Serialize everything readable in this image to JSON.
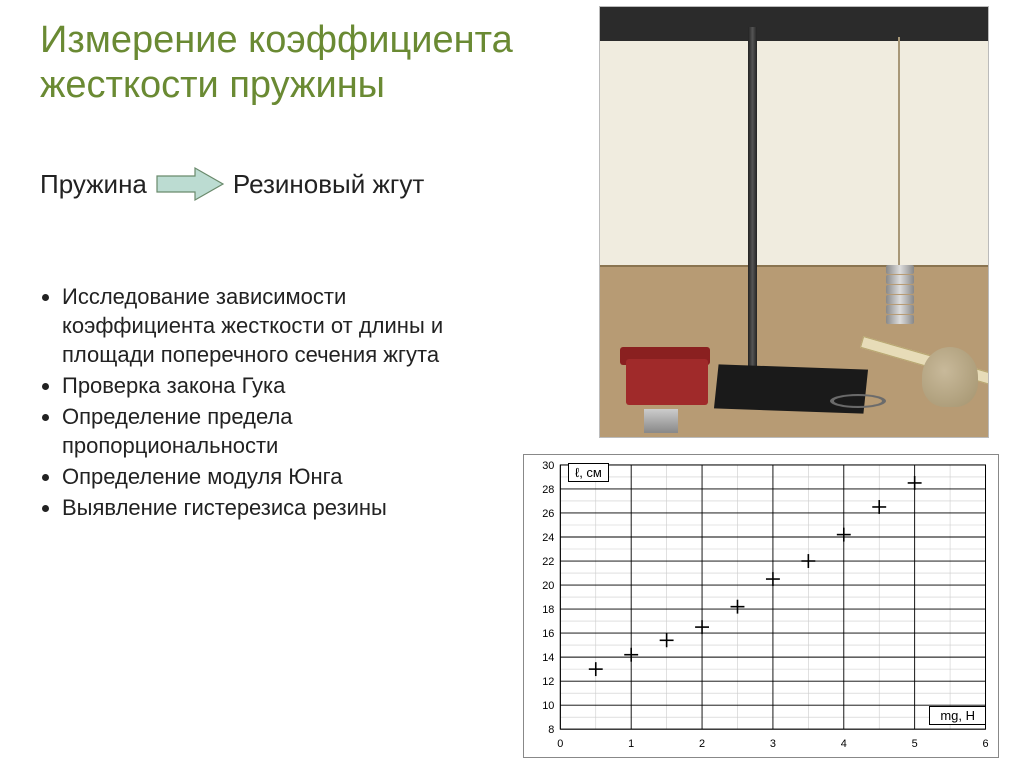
{
  "title_line1": "Измерение коэффициента",
  "title_line2": "жесткости пружины",
  "title_color": "#6a8a33",
  "sub_left": "Пружина",
  "sub_right": "Резиновый жгут",
  "arrow_fill": "#bcdcd2",
  "arrow_stroke": "#6a8a6c",
  "bullets": [
    "Исследование зависимости коэффициента жесткости от длины и площади поперечного сечения жгута",
    "Проверка закона Гука",
    "Определение предела пропорциональности",
    "Определение модуля Юнга",
    "Выявление гистерезиса резины"
  ],
  "photo": {
    "wall_color": "#f0ecdf",
    "table_color": "#b79b74",
    "redbox_color": "#a02a2a",
    "weight_count": 6
  },
  "chart": {
    "type": "scatter",
    "ylabel": "ℓ, см",
    "xlabel": "mg, Н",
    "xlim": [
      0,
      6
    ],
    "ylim": [
      8,
      30
    ],
    "xtick_step": 1,
    "ytick_step": 2,
    "grid_major_color": "#000000",
    "grid_minor_color": "#cccccc",
    "background": "#ffffff",
    "tick_fontsize": 11,
    "marker": "+",
    "marker_color": "#000000",
    "marker_size": 7,
    "points": [
      {
        "x": 0.5,
        "y": 13.0
      },
      {
        "x": 1.0,
        "y": 14.2
      },
      {
        "x": 1.5,
        "y": 15.4
      },
      {
        "x": 2.0,
        "y": 16.5
      },
      {
        "x": 2.5,
        "y": 18.2
      },
      {
        "x": 3.0,
        "y": 20.5
      },
      {
        "x": 3.5,
        "y": 22.0
      },
      {
        "x": 4.0,
        "y": 24.2
      },
      {
        "x": 4.5,
        "y": 26.5
      },
      {
        "x": 5.0,
        "y": 28.5
      }
    ]
  }
}
